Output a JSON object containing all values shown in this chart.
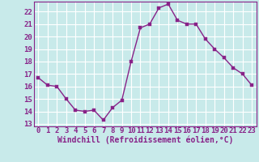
{
  "x": [
    0,
    1,
    2,
    3,
    4,
    5,
    6,
    7,
    8,
    9,
    10,
    11,
    12,
    13,
    14,
    15,
    16,
    17,
    18,
    19,
    20,
    21,
    22,
    23
  ],
  "y": [
    16.7,
    16.1,
    16.0,
    15.0,
    14.1,
    14.0,
    14.1,
    13.3,
    14.3,
    14.9,
    18.0,
    20.7,
    21.0,
    22.3,
    22.6,
    21.3,
    21.0,
    21.0,
    19.8,
    19.0,
    18.3,
    17.5,
    17.0,
    16.1
  ],
  "line_color": "#882288",
  "marker_color": "#882288",
  "bg_color": "#c8eaea",
  "grid_color": "#ffffff",
  "xlabel": "Windchill (Refroidissement éolien,°C)",
  "xlim": [
    -0.5,
    23.5
  ],
  "ylim": [
    12.8,
    22.8
  ],
  "yticks": [
    13,
    14,
    15,
    16,
    17,
    18,
    19,
    20,
    21,
    22
  ],
  "xticks": [
    0,
    1,
    2,
    3,
    4,
    5,
    6,
    7,
    8,
    9,
    10,
    11,
    12,
    13,
    14,
    15,
    16,
    17,
    18,
    19,
    20,
    21,
    22,
    23
  ],
  "tick_label_fontsize": 6.5,
  "xlabel_fontsize": 7,
  "marker_size": 2.5,
  "line_width": 1.0
}
